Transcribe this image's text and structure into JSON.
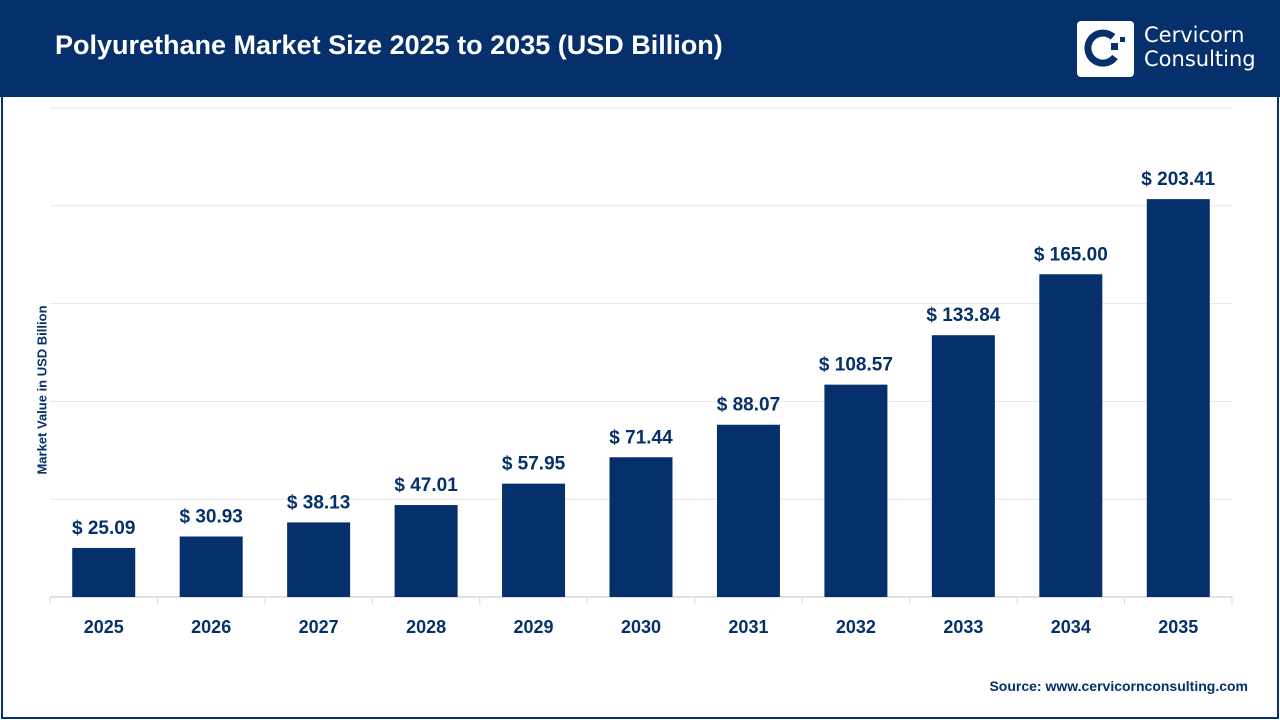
{
  "header": {
    "title": "Polyurethane Market Size 2025 to 2035 (USD Billion)",
    "logo_text_line1": "Cervicorn",
    "logo_text_line2": "Consulting"
  },
  "source": "Source: www.cervicornconsulting.com",
  "colors": {
    "bar": "#05306b",
    "header": "#05306b",
    "grid": "#e6e6e6"
  },
  "chart_data": {
    "type": "bar",
    "title": "Polyurethane Market Size 2025 to 2035 (USD Billion)",
    "ylabel": "Market Value in USD Billion",
    "xlabel": "",
    "categories": [
      "2025",
      "2026",
      "2027",
      "2028",
      "2029",
      "2030",
      "2031",
      "2032",
      "2033",
      "2034",
      "2035"
    ],
    "values": [
      25.09,
      30.93,
      38.13,
      47.01,
      57.95,
      71.44,
      88.07,
      108.57,
      133.84,
      165.0,
      203.41
    ],
    "data_labels": [
      "$ 25.09",
      "$ 30.93",
      "$ 38.13",
      "$ 47.01",
      "$ 57.95",
      "$ 71.44",
      "$ 88.07",
      "$ 108.57",
      "$ 133.84",
      "$ 165.00",
      "$ 203.41"
    ],
    "ylim": [
      0,
      250
    ],
    "grid": true,
    "legend": "none"
  }
}
